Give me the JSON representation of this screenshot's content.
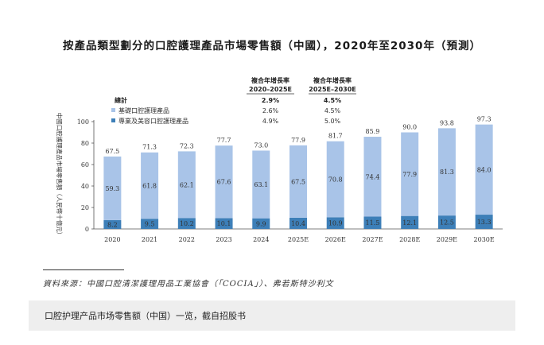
{
  "title": "按產品類型劃分的口腔護理產品市場零售額（中國），2020年至2030年（預測）",
  "source": "資料來源：中國口腔清潔護理用品工業協會（「COCIA」）、弗若斯特沙利文",
  "caption": "口腔护理产品市场零售额（中国）一览，截自招股书",
  "cagr_table": {
    "col1_header_line1": "複合年增長率",
    "col1_header_line2": "2020–2025E",
    "col2_header_line1": "複合年增長率",
    "col2_header_line2": "2025E–2030E",
    "rows": [
      {
        "label": "總計",
        "col1": "2.9%",
        "col2": "4.5%",
        "bold": true
      },
      {
        "label": "基礎口腔護理產品",
        "col1": "2.6%",
        "col2": "4.5%",
        "bold": false
      },
      {
        "label": "專業及美容口腔護理產品",
        "col1": "4.9%",
        "col2": "5.0%",
        "bold": false
      }
    ]
  },
  "colors": {
    "basic": "#a9c4e8",
    "professional": "#3d7fb8",
    "axis": "#555555"
  },
  "chart_data": {
    "type": "bar",
    "stacked": true,
    "categories": [
      "2020",
      "2021",
      "2022",
      "2023",
      "2024",
      "2025E",
      "2026E",
      "2027E",
      "2028E",
      "2029E",
      "2030E"
    ],
    "series": [
      {
        "name": "專業及美容口腔護理產品",
        "values": [
          8.2,
          9.5,
          10.2,
          10.1,
          9.9,
          10.4,
          10.9,
          11.5,
          12.1,
          12.5,
          13.3
        ]
      },
      {
        "name": "基礎口腔護理產品",
        "values": [
          59.3,
          61.8,
          62.1,
          67.6,
          63.1,
          67.5,
          70.8,
          74.4,
          77.9,
          81.3,
          84.0
        ]
      }
    ],
    "totals": [
      67.5,
      71.3,
      72.3,
      77.7,
      73.0,
      77.9,
      81.7,
      85.9,
      90.0,
      93.8,
      97.3
    ],
    "ylabel": "中國口腔護理產品市場零售額（人民幣十億元）",
    "yticks": [
      0,
      20,
      40,
      60,
      80,
      100
    ],
    "ylim": [
      0,
      100
    ]
  }
}
